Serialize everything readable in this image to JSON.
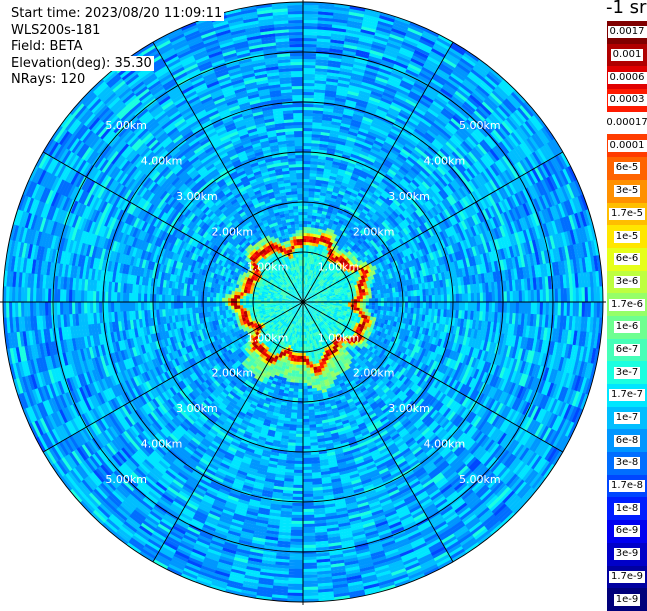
{
  "header": {
    "start_time": "Start time: 2023/08/20 11:09:11",
    "instrument": "WLS200s-181",
    "field": "Field: BETA",
    "elevation": "Elevation(deg): 35.30",
    "nrays": "NRays: 120"
  },
  "colorbar": {
    "unit": "-1 sr",
    "levels": [
      {
        "label": "0.0017",
        "color": "#800000"
      },
      {
        "label": "0.001",
        "color": "#b00000"
      },
      {
        "label": "0.0006",
        "color": "#e00000"
      },
      {
        "label": "0.0003",
        "color": "#ff1a00"
      },
      {
        "label": "0.00017",
        "color": "#ffffff"
      },
      {
        "label": "0.0001",
        "color": "#ff3c00"
      },
      {
        "label": "6e-5",
        "color": "#ff6400"
      },
      {
        "label": "3e-5",
        "color": "#ff9000"
      },
      {
        "label": "1.7e-5",
        "color": "#ffbe00"
      },
      {
        "label": "1e-5",
        "color": "#ffe600"
      },
      {
        "label": "6e-6",
        "color": "#e6ff1a"
      },
      {
        "label": "3e-6",
        "color": "#beff40"
      },
      {
        "label": "1.7e-6",
        "color": "#96ff68"
      },
      {
        "label": "1e-6",
        "color": "#6eff90"
      },
      {
        "label": "6e-7",
        "color": "#46ffb8"
      },
      {
        "label": "3e-7",
        "color": "#1affe0"
      },
      {
        "label": "1.7e-7",
        "color": "#00e6ff"
      },
      {
        "label": "1e-7",
        "color": "#00beff"
      },
      {
        "label": "6e-8",
        "color": "#0096ff"
      },
      {
        "label": "3e-8",
        "color": "#006eff"
      },
      {
        "label": "1.7e-8",
        "color": "#0046ff"
      },
      {
        "label": "1e-8",
        "color": "#001eff"
      },
      {
        "label": "6e-9",
        "color": "#0000f0"
      },
      {
        "label": "3e-9",
        "color": "#0000c8"
      },
      {
        "label": "1.7e-9",
        "color": "#0000a0"
      },
      {
        "label": "1e-9",
        "color": "#00007a"
      }
    ]
  },
  "chart_data": {
    "type": "heatmap",
    "projection": "polar PPI scan",
    "rays": 120,
    "max_range_km": 6.0,
    "range_rings_km": [
      1,
      2,
      3,
      4,
      5,
      6
    ],
    "spokes_deg": [
      0,
      30,
      60,
      90,
      120,
      150,
      180,
      210,
      240,
      270,
      300,
      330
    ],
    "ring_labels": [
      "1.00km",
      "2.00km",
      "3.00km",
      "4.00km",
      "5.00km"
    ],
    "field": "BETA",
    "background_level_range": [
      "3e-8",
      "1.7e-7"
    ],
    "features": [
      {
        "description_level": "1.7e-7 to 6e-7",
        "range_km": [
          0.0,
          1.4
        ]
      },
      {
        "description_level": "1e-5 to 1.7e-5",
        "range_km": [
          1.05,
          1.4
        ]
      },
      {
        "description_level": "0.0003 to 0.0006",
        "range_km": [
          1.05,
          1.3
        ]
      }
    ]
  }
}
